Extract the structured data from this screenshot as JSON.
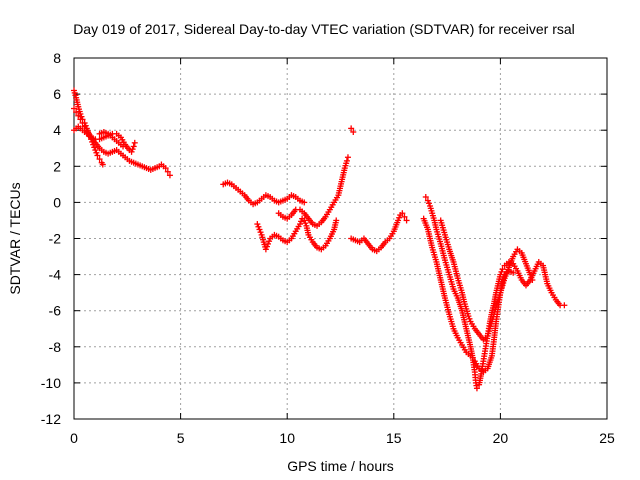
{
  "chart_data": {
    "type": "scatter",
    "title": "Day 019 of 2017, Sidereal Day-to-day VTEC variation (SDTVAR) for receiver rsal",
    "xlabel": "GPS time / hours",
    "ylabel": "SDTVAR / TECUs",
    "xlim": [
      0,
      25
    ],
    "ylim": [
      -12,
      8
    ],
    "xticks": [
      0,
      5,
      10,
      15,
      20,
      25
    ],
    "yticks": [
      -12,
      -10,
      -8,
      -6,
      -4,
      -2,
      0,
      2,
      4,
      6,
      8
    ],
    "grid": true,
    "marker": "+",
    "color": "#ff0000",
    "series": [
      {
        "tracks": [
          [
            [
              0.0,
              6.2
            ],
            [
              0.1,
              5.8
            ],
            [
              0.2,
              5.3
            ],
            [
              0.3,
              4.9
            ],
            [
              0.4,
              4.6
            ],
            [
              0.5,
              4.4
            ],
            [
              0.6,
              4.1
            ],
            [
              0.7,
              3.8
            ],
            [
              0.8,
              3.5
            ],
            [
              0.9,
              3.2
            ],
            [
              1.0,
              2.9
            ],
            [
              1.1,
              2.6
            ],
            [
              1.2,
              2.4
            ],
            [
              1.3,
              2.2
            ],
            [
              1.35,
              2.1
            ]
          ],
          [
            [
              0.0,
              5.2
            ],
            [
              0.1,
              5.0
            ],
            [
              0.2,
              4.8
            ],
            [
              0.3,
              4.6
            ],
            [
              0.4,
              4.4
            ],
            [
              0.5,
              4.2
            ],
            [
              0.6,
              4.0
            ],
            [
              0.8,
              3.6
            ],
            [
              1.0,
              3.3
            ],
            [
              1.2,
              3.0
            ],
            [
              1.4,
              2.8
            ],
            [
              1.6,
              2.7
            ],
            [
              1.8,
              2.8
            ],
            [
              2.0,
              2.9
            ],
            [
              2.2,
              2.7
            ],
            [
              2.4,
              2.5
            ],
            [
              2.6,
              2.3
            ],
            [
              2.8,
              2.2
            ],
            [
              3.0,
              2.1
            ],
            [
              3.2,
              2.0
            ],
            [
              3.4,
              1.9
            ],
            [
              3.6,
              1.8
            ],
            [
              3.8,
              1.9
            ],
            [
              4.0,
              2.0
            ],
            [
              4.1,
              2.1
            ],
            [
              4.2,
              2.0
            ],
            [
              4.3,
              1.9
            ],
            [
              4.4,
              1.7
            ],
            [
              4.5,
              1.5
            ]
          ],
          [
            [
              0.0,
              4.0
            ],
            [
              0.2,
              4.2
            ],
            [
              0.4,
              4.0
            ],
            [
              0.6,
              3.8
            ],
            [
              0.8,
              3.6
            ],
            [
              1.0,
              3.5
            ],
            [
              1.2,
              3.5
            ],
            [
              1.4,
              3.6
            ],
            [
              1.6,
              3.7
            ],
            [
              1.8,
              3.8
            ],
            [
              2.0,
              3.8
            ],
            [
              2.2,
              3.6
            ],
            [
              2.4,
              3.2
            ],
            [
              2.6,
              2.9
            ],
            [
              2.7,
              2.8
            ],
            [
              2.8,
              3.1
            ],
            [
              2.85,
              3.3
            ]
          ],
          [
            [
              1.2,
              3.8
            ],
            [
              1.4,
              3.9
            ],
            [
              1.6,
              3.8
            ],
            [
              1.8,
              3.6
            ],
            [
              2.0,
              3.4
            ],
            [
              2.2,
              3.2
            ],
            [
              2.3,
              3.1
            ]
          ],
          [
            [
              7.0,
              1.0
            ],
            [
              7.2,
              1.1
            ],
            [
              7.4,
              1.0
            ],
            [
              7.6,
              0.8
            ],
            [
              7.8,
              0.6
            ],
            [
              8.0,
              0.4
            ],
            [
              8.2,
              0.1
            ],
            [
              8.4,
              -0.1
            ],
            [
              8.6,
              0.0
            ],
            [
              8.8,
              0.2
            ],
            [
              9.0,
              0.4
            ],
            [
              9.2,
              0.3
            ],
            [
              9.4,
              0.1
            ],
            [
              9.6,
              0.0
            ],
            [
              9.8,
              0.1
            ],
            [
              10.0,
              0.2
            ],
            [
              10.2,
              0.4
            ],
            [
              10.4,
              0.3
            ],
            [
              10.6,
              0.1
            ],
            [
              10.8,
              0.0
            ]
          ],
          [
            [
              8.6,
              -1.2
            ],
            [
              8.7,
              -1.5
            ],
            [
              8.8,
              -1.8
            ],
            [
              8.9,
              -2.2
            ],
            [
              9.0,
              -2.6
            ],
            [
              9.1,
              -2.3
            ],
            [
              9.2,
              -2.0
            ],
            [
              9.4,
              -1.8
            ],
            [
              9.6,
              -1.9
            ],
            [
              9.8,
              -2.1
            ],
            [
              10.0,
              -2.2
            ],
            [
              10.2,
              -2.0
            ],
            [
              10.4,
              -1.6
            ],
            [
              10.6,
              -1.2
            ],
            [
              10.7,
              -0.9
            ],
            [
              10.8,
              -1.0
            ],
            [
              10.9,
              -1.3
            ],
            [
              11.0,
              -1.8
            ],
            [
              11.2,
              -2.2
            ],
            [
              11.4,
              -2.5
            ],
            [
              11.6,
              -2.6
            ],
            [
              11.8,
              -2.4
            ],
            [
              12.0,
              -2.0
            ],
            [
              12.2,
              -1.5
            ],
            [
              12.3,
              -1.0
            ]
          ],
          [
            [
              9.6,
              -0.6
            ],
            [
              9.8,
              -0.8
            ],
            [
              10.0,
              -0.9
            ],
            [
              10.2,
              -0.7
            ],
            [
              10.4,
              -0.4
            ],
            [
              10.6,
              -0.4
            ],
            [
              10.8,
              -0.6
            ],
            [
              11.0,
              -0.9
            ],
            [
              11.2,
              -1.2
            ],
            [
              11.4,
              -1.3
            ],
            [
              11.6,
              -1.1
            ],
            [
              11.8,
              -0.8
            ],
            [
              12.0,
              -0.4
            ],
            [
              12.2,
              0.0
            ],
            [
              12.4,
              0.4
            ],
            [
              12.5,
              0.9
            ],
            [
              12.6,
              1.4
            ],
            [
              12.7,
              1.9
            ],
            [
              12.8,
              2.3
            ],
            [
              12.85,
              2.5
            ]
          ],
          [
            [
              13.0,
              4.1
            ],
            [
              13.1,
              3.9
            ]
          ],
          [
            [
              13.0,
              -2.0
            ],
            [
              13.2,
              -2.1
            ],
            [
              13.4,
              -2.2
            ],
            [
              13.6,
              -2.0
            ],
            [
              13.8,
              -2.3
            ],
            [
              14.0,
              -2.6
            ],
            [
              14.2,
              -2.7
            ],
            [
              14.4,
              -2.5
            ],
            [
              14.6,
              -2.2
            ],
            [
              14.8,
              -2.0
            ],
            [
              15.0,
              -1.6
            ],
            [
              15.2,
              -1.0
            ],
            [
              15.3,
              -0.7
            ],
            [
              15.4,
              -0.6
            ],
            [
              15.5,
              -0.8
            ],
            [
              15.6,
              -1.0
            ]
          ],
          [
            [
              16.5,
              0.3
            ],
            [
              16.6,
              0.1
            ],
            [
              16.7,
              -0.2
            ],
            [
              16.8,
              -0.6
            ],
            [
              16.9,
              -1.0
            ],
            [
              17.0,
              -1.5
            ],
            [
              17.2,
              -2.3
            ],
            [
              17.4,
              -3.2
            ],
            [
              17.6,
              -4.0
            ],
            [
              17.8,
              -4.8
            ],
            [
              18.0,
              -5.3
            ],
            [
              18.2,
              -6.0
            ],
            [
              18.4,
              -7.0
            ],
            [
              18.6,
              -8.0
            ],
            [
              18.7,
              -8.6
            ],
            [
              18.8,
              -9.4
            ],
            [
              18.85,
              -10.0
            ],
            [
              18.9,
              -10.3
            ],
            [
              19.0,
              -10.1
            ],
            [
              19.1,
              -9.5
            ],
            [
              19.2,
              -8.8
            ],
            [
              19.3,
              -8.1
            ],
            [
              19.4,
              -7.4
            ],
            [
              19.5,
              -6.7
            ],
            [
              19.6,
              -6.1
            ],
            [
              19.7,
              -5.6
            ],
            [
              19.8,
              -5.0
            ],
            [
              19.9,
              -4.5
            ],
            [
              20.0,
              -4.0
            ],
            [
              20.1,
              -3.7
            ],
            [
              20.2,
              -3.5
            ],
            [
              20.4,
              -3.3
            ],
            [
              20.6,
              -3.4
            ],
            [
              20.8,
              -3.8
            ],
            [
              21.0,
              -4.3
            ],
            [
              21.2,
              -4.6
            ],
            [
              21.4,
              -4.3
            ],
            [
              21.6,
              -3.8
            ],
            [
              21.8,
              -3.3
            ],
            [
              22.0,
              -3.5
            ],
            [
              22.1,
              -4.0
            ],
            [
              22.2,
              -4.5
            ],
            [
              22.4,
              -5.0
            ],
            [
              22.6,
              -5.4
            ],
            [
              22.8,
              -5.7
            ],
            [
              23.0,
              -5.7
            ]
          ],
          [
            [
              16.4,
              -0.9
            ],
            [
              16.6,
              -1.5
            ],
            [
              16.8,
              -2.5
            ],
            [
              17.0,
              -3.3
            ],
            [
              17.2,
              -4.3
            ],
            [
              17.4,
              -5.3
            ],
            [
              17.6,
              -6.2
            ],
            [
              17.8,
              -7.0
            ],
            [
              18.0,
              -7.5
            ],
            [
              18.2,
              -7.9
            ],
            [
              18.4,
              -8.3
            ],
            [
              18.6,
              -8.5
            ],
            [
              18.7,
              -8.6
            ]
          ],
          [
            [
              17.2,
              -1.0
            ],
            [
              17.4,
              -1.8
            ],
            [
              17.6,
              -2.6
            ],
            [
              17.8,
              -3.3
            ],
            [
              18.0,
              -4.2
            ],
            [
              18.2,
              -5.0
            ],
            [
              18.3,
              -5.5
            ],
            [
              18.4,
              -5.9
            ],
            [
              18.5,
              -6.3
            ],
            [
              18.6,
              -6.6
            ],
            [
              18.8,
              -7.0
            ],
            [
              19.0,
              -7.3
            ],
            [
              19.2,
              -7.6
            ],
            [
              19.4,
              -7.4
            ],
            [
              19.6,
              -6.6
            ],
            [
              19.8,
              -5.8
            ],
            [
              20.0,
              -5.0
            ],
            [
              20.2,
              -4.2
            ],
            [
              20.4,
              -3.6
            ],
            [
              20.6,
              -3.0
            ],
            [
              20.8,
              -2.6
            ],
            [
              21.0,
              -2.8
            ],
            [
              21.2,
              -3.4
            ],
            [
              21.4,
              -4.0
            ],
            [
              21.5,
              -4.3
            ]
          ],
          [
            [
              18.8,
              -8.8
            ],
            [
              19.0,
              -9.2
            ],
            [
              19.2,
              -9.4
            ],
            [
              19.4,
              -9.2
            ],
            [
              19.6,
              -8.5
            ],
            [
              19.7,
              -7.6
            ],
            [
              19.8,
              -6.6
            ],
            [
              19.9,
              -5.8
            ],
            [
              20.0,
              -5.0
            ],
            [
              20.1,
              -4.4
            ],
            [
              20.2,
              -4.0
            ],
            [
              20.4,
              -3.8
            ],
            [
              20.6,
              -3.9
            ]
          ]
        ]
      }
    ]
  }
}
